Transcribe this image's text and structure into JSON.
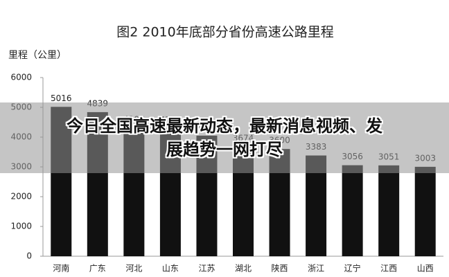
{
  "chart_data": {
    "type": "bar",
    "title": "图2      2010年底部分省份高速公路里程",
    "y_label": "里程（公里）",
    "categories": [
      "河南",
      "广东",
      "河北",
      "山东",
      "江苏",
      "湖北",
      "陕西",
      "浙江",
      "辽宁",
      "江西",
      "山西"
    ],
    "values": [
      5016,
      4839,
      4307,
      4285,
      4050,
      3674,
      3600,
      3383,
      3056,
      3051,
      3003
    ],
    "color": "#111111",
    "ylim": [
      0,
      6000
    ],
    "yticks": [
      0,
      1000,
      2000,
      3000,
      4000,
      5000,
      6000
    ],
    "grid": false
  },
  "banner": {
    "lines": [
      "今日全国高速最新动态，最新消息视频、发",
      "展趋势一网打尽"
    ]
  }
}
